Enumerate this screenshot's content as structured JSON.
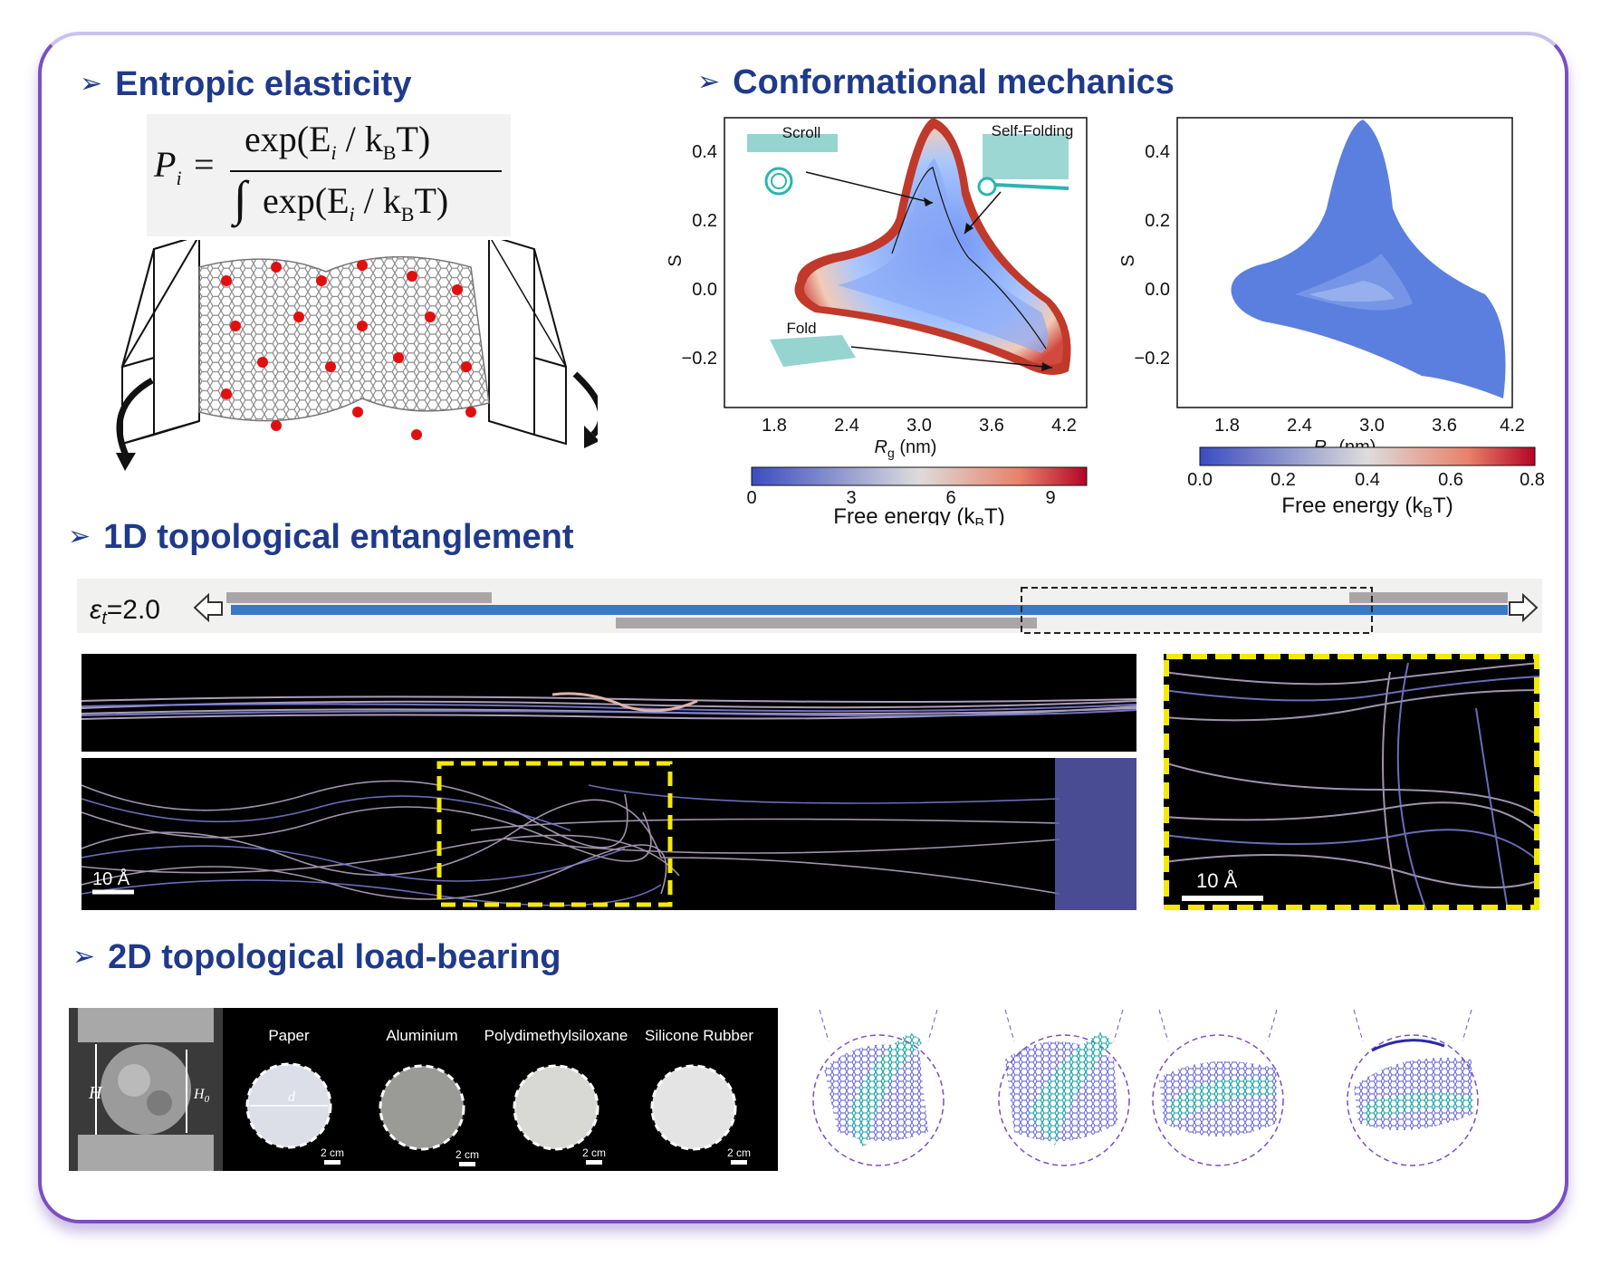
{
  "headings": {
    "entropic": "Entropic elasticity",
    "conformational": "Conformational mechanics",
    "entangle1d": "1D topological entanglement",
    "loadbearing2d": "2D topological load-bearing",
    "arrow": "➢"
  },
  "formula": {
    "lhs": "P",
    "lhs_sub": "i",
    "eq": "=",
    "numerator": "exp(E",
    "num_sub": "i",
    "num_rest": " / k",
    "num_sub2": "B",
    "num_end": "T)",
    "integral": "∫",
    "denominator": "exp(E",
    "den_sub": "i",
    "den_rest": " / k",
    "den_sub2": "B",
    "den_end": "T)"
  },
  "plot1": {
    "ylabel": "S",
    "xlabel_main": "R",
    "xlabel_sub": "g",
    "xlabel_unit": " (nm)",
    "xticks": [
      "1.8",
      "2.4",
      "3.0",
      "3.6",
      "4.2"
    ],
    "yticks": [
      "0.4",
      "0.2",
      "0.0",
      "−0.2"
    ],
    "annotations": [
      "Scroll",
      "Self-Folding",
      "Fold"
    ],
    "colorbar_ticks": [
      "0",
      "3",
      "6",
      "9"
    ],
    "colorbar_label": "Free energy (k",
    "colorbar_label_sub": "B",
    "colorbar_label_end": "T)"
  },
  "plot2": {
    "ylabel": "S",
    "xlabel_main": "R",
    "xlabel_sub": "g",
    "xlabel_unit": " (nm)",
    "xticks": [
      "1.8",
      "2.4",
      "3.0",
      "3.6",
      "4.2"
    ],
    "yticks": [
      "0.4",
      "0.2",
      "0.0",
      "−0.2"
    ],
    "colorbar_ticks": [
      "0.0",
      "0.2",
      "0.4",
      "0.6",
      "0.8"
    ],
    "colorbar_label": "Free energy (k",
    "colorbar_label_sub": "B",
    "colorbar_label_end": "T)"
  },
  "strain": {
    "symbol": "ε",
    "sub": "t",
    "value": "=2.0"
  },
  "scalebars": {
    "left": "10 Å",
    "right": "10 Å"
  },
  "materials": {
    "labels": [
      "Paper",
      "Aluminium",
      "Polydimethylsiloxane",
      "Silicone Rubber"
    ],
    "scale": "2 cm",
    "H": "H",
    "H0": "H",
    "H0_sub": "0",
    "d": "d"
  },
  "colors": {
    "heading": "#1f3a8a",
    "border": "#7a4fc2",
    "blue_bar": "#3a78c8",
    "grey_bar": "#a9a5a8",
    "teal": "#2bb5b0",
    "purple": "#6a5fc8",
    "yellow": "#f5e90a"
  }
}
